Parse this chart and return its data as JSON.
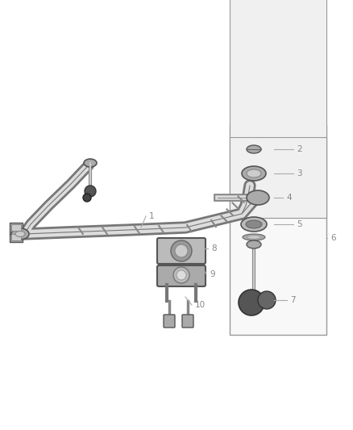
{
  "background_color": "#ffffff",
  "line_color": "#666666",
  "part_color": "#888888",
  "light_color": "#cccccc",
  "dark_color": "#444444",
  "figsize": [
    4.38,
    5.33
  ],
  "dpi": 100,
  "label_color": "#888888",
  "label_fontsize": 7.5
}
